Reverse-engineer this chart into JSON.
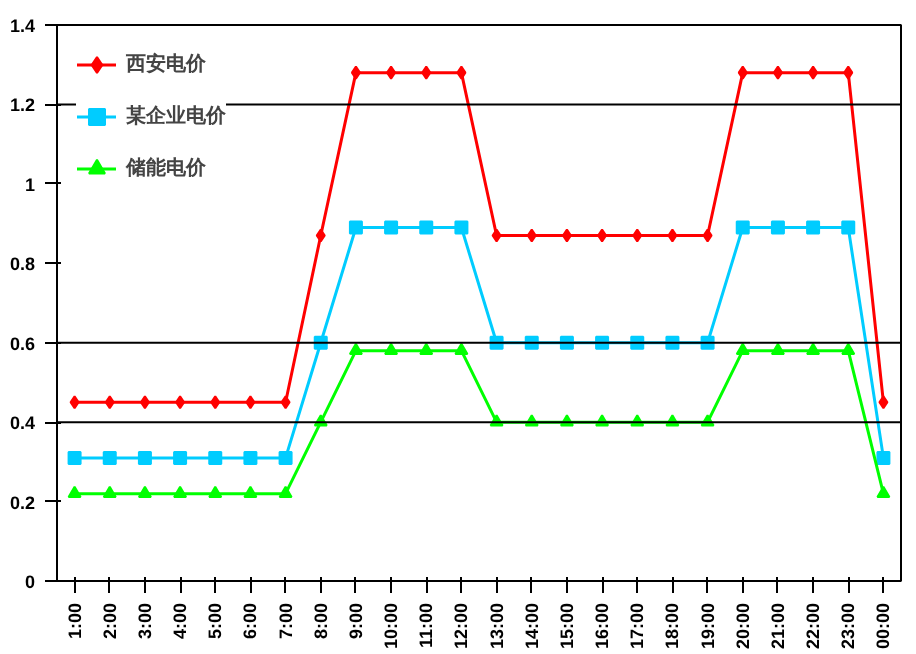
{
  "chart_data": {
    "type": "line",
    "categories": [
      "1:00",
      "2:00",
      "3:00",
      "4:00",
      "5:00",
      "6:00",
      "7:00",
      "8:00",
      "9:00",
      "10:00",
      "11:00",
      "12:00",
      "13:00",
      "14:00",
      "15:00",
      "16:00",
      "17:00",
      "18:00",
      "19:00",
      "20:00",
      "21:00",
      "22:00",
      "23:00",
      "00:00"
    ],
    "series": [
      {
        "name": "西安电价",
        "color": "#ff0000",
        "marker": "diamond",
        "values": [
          0.45,
          0.45,
          0.45,
          0.45,
          0.45,
          0.45,
          0.45,
          0.87,
          1.28,
          1.28,
          1.28,
          1.28,
          0.87,
          0.87,
          0.87,
          0.87,
          0.87,
          0.87,
          0.87,
          1.28,
          1.28,
          1.28,
          1.28,
          0.45
        ]
      },
      {
        "name": "某企业电价",
        "color": "#00ccff",
        "marker": "square",
        "values": [
          0.31,
          0.31,
          0.31,
          0.31,
          0.31,
          0.31,
          0.31,
          0.6,
          0.89,
          0.89,
          0.89,
          0.89,
          0.6,
          0.6,
          0.6,
          0.6,
          0.6,
          0.6,
          0.6,
          0.89,
          0.89,
          0.89,
          0.89,
          0.31
        ]
      },
      {
        "name": "储能电价",
        "color": "#00ff00",
        "marker": "triangle",
        "values": [
          0.22,
          0.22,
          0.22,
          0.22,
          0.22,
          0.22,
          0.22,
          0.4,
          0.58,
          0.58,
          0.58,
          0.58,
          0.4,
          0.4,
          0.4,
          0.4,
          0.4,
          0.4,
          0.4,
          0.58,
          0.58,
          0.58,
          0.58,
          0.22
        ]
      }
    ],
    "ylim": [
      0,
      1.4
    ],
    "yticks": [
      0,
      0.2,
      0.4,
      0.6,
      0.8,
      1,
      1.2,
      1.4
    ],
    "ref_lines": [
      {
        "axis": "y",
        "value": 0.4
      },
      {
        "axis": "y",
        "value": 0.6
      },
      {
        "axis": "y",
        "value": 1.2
      }
    ],
    "grid": false,
    "legend": "top left"
  }
}
